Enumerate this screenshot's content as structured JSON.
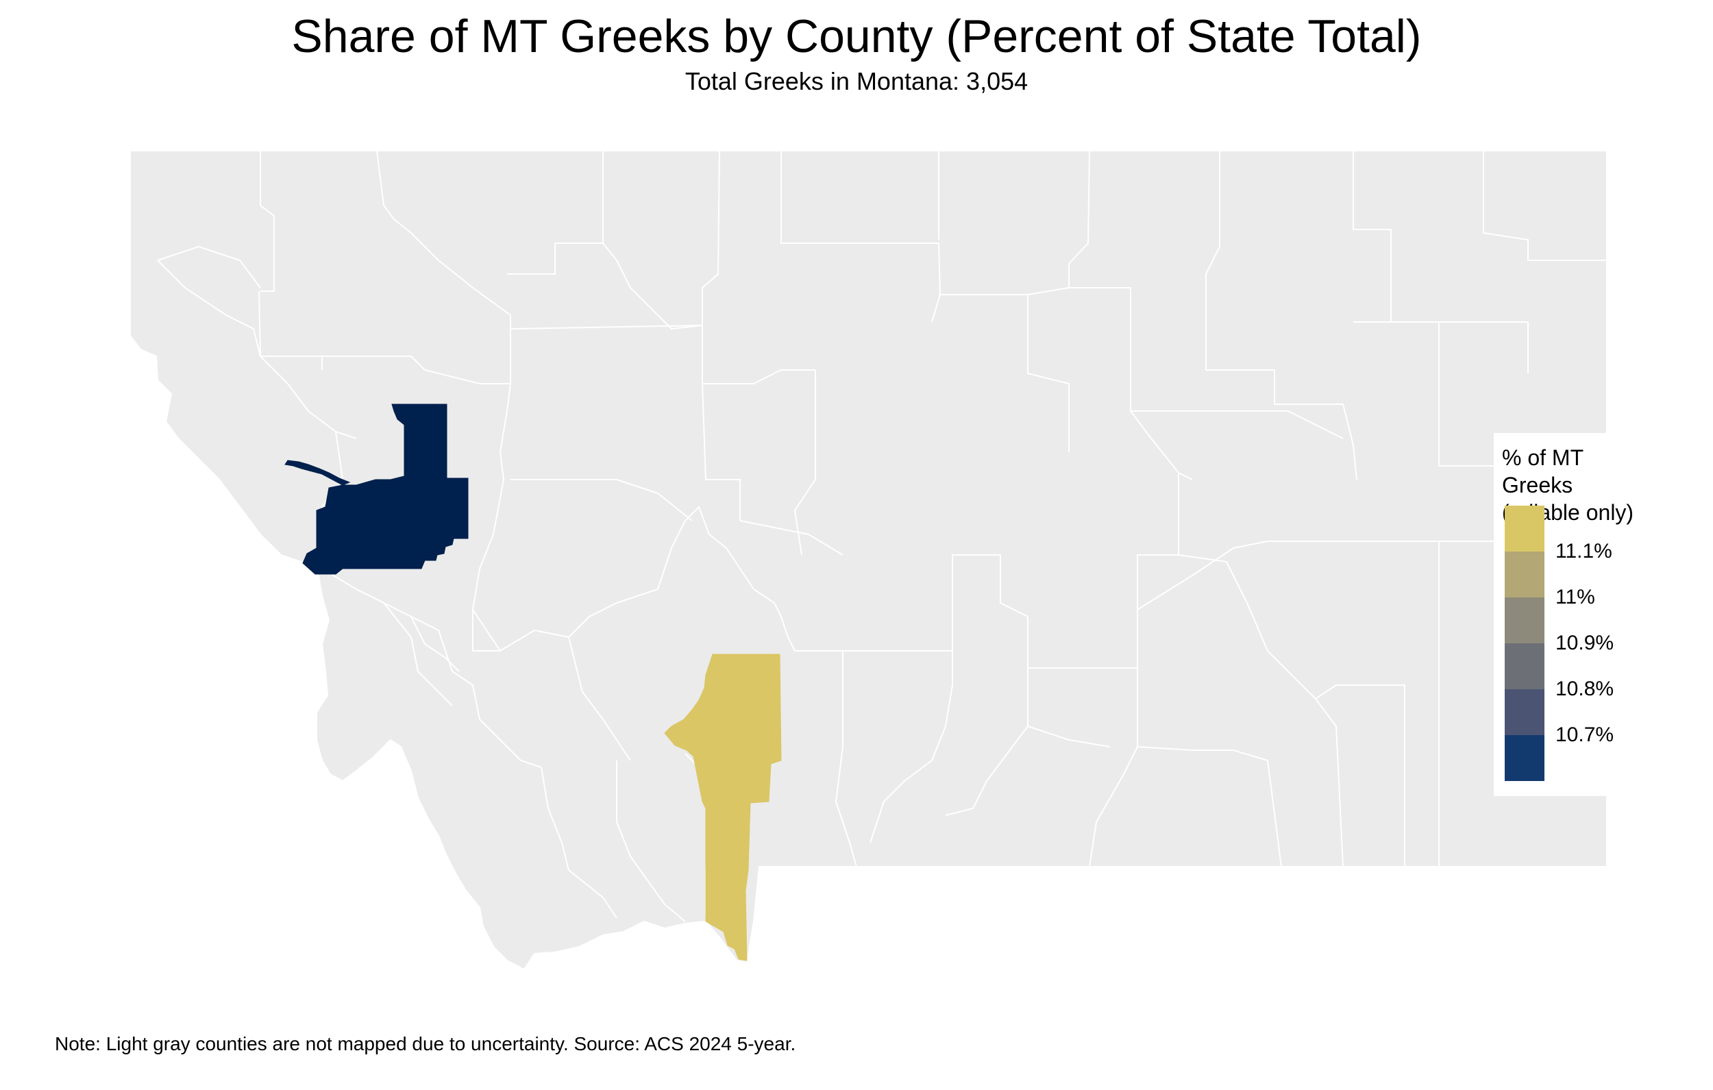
{
  "title": "Share of MT Greeks by County (Percent of State Total)",
  "subtitle": "Total Greeks in Montana: 3,054",
  "legend": {
    "title_line1": "% of MT Greeks",
    "title_line2": "(reliable only)",
    "labels": [
      "11.1%",
      "11%",
      "10.9%",
      "10.8%",
      "10.7%"
    ],
    "colors": [
      "#D9C766",
      "#B2A775",
      "#8E8A7B",
      "#6D6F77",
      "#4B5573",
      "#133A6F"
    ]
  },
  "colors": {
    "unmapped": "#EBEBEB",
    "county_border": "#FFFFFF",
    "missoula": "#00204D",
    "gallatin": "#DAC665"
  },
  "note": "Note: Light gray counties are not mapped due to uncertainty. Source: ACS 2024 5-year."
}
